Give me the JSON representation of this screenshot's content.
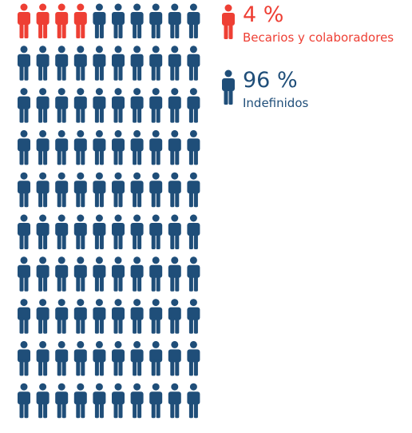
{
  "chart_data": {
    "type": "pictogram",
    "total_icons": 100,
    "rows": 10,
    "columns": 10,
    "series": [
      {
        "name": "Becarios y colaboradores",
        "value": 4,
        "value_label": "4 %",
        "color": "#ee3f34",
        "icon": "person-icon"
      },
      {
        "name": "Indefinidos",
        "value": 96,
        "value_label": "96 %",
        "color": "#1f4e79",
        "icon": "person-icon"
      }
    ]
  }
}
